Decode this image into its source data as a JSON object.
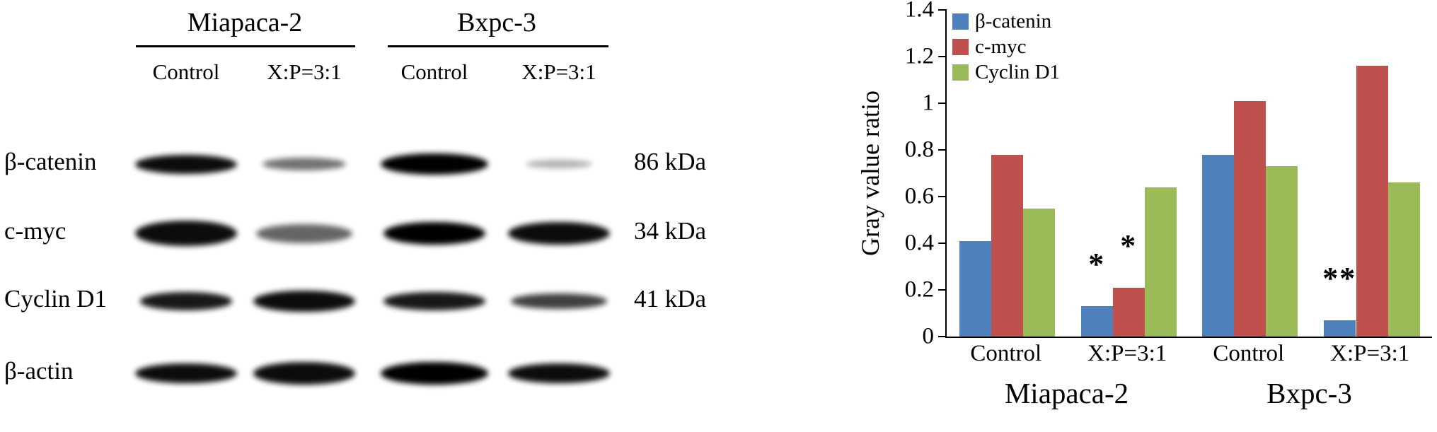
{
  "blot": {
    "groups": [
      {
        "name": "Miapaca-2",
        "lanes": [
          "Control",
          "X:P=3:1"
        ]
      },
      {
        "name": "Bxpc-3",
        "lanes": [
          "Control",
          "X:P=3:1"
        ]
      }
    ],
    "rows": [
      {
        "label": "β-catenin",
        "kda": "86 kDa",
        "bands": [
          {
            "o": 0.95,
            "w": 1.0,
            "h": 0.75
          },
          {
            "o": 0.55,
            "w": 0.82,
            "h": 0.5
          },
          {
            "o": 1.0,
            "w": 1.06,
            "h": 0.85
          },
          {
            "o": 0.3,
            "w": 0.65,
            "h": 0.35
          }
        ]
      },
      {
        "label": "c-myc",
        "kda": "34 kDa",
        "bands": [
          {
            "o": 0.95,
            "w": 1.0,
            "h": 1.0
          },
          {
            "o": 0.6,
            "w": 0.95,
            "h": 0.75
          },
          {
            "o": 1.0,
            "w": 1.0,
            "h": 0.9
          },
          {
            "o": 0.95,
            "w": 1.0,
            "h": 0.9
          }
        ]
      },
      {
        "label": "Cyclin D1",
        "kda": "41 kDa",
        "bands": [
          {
            "o": 0.9,
            "w": 0.9,
            "h": 0.7
          },
          {
            "o": 0.95,
            "w": 1.0,
            "h": 0.85
          },
          {
            "o": 0.9,
            "w": 1.0,
            "h": 0.7
          },
          {
            "o": 0.75,
            "w": 0.95,
            "h": 0.6
          }
        ]
      },
      {
        "label": "β-actin",
        "kda": "",
        "bands": [
          {
            "o": 0.95,
            "w": 1.0,
            "h": 0.8
          },
          {
            "o": 0.95,
            "w": 1.0,
            "h": 0.9
          },
          {
            "o": 1.0,
            "w": 1.06,
            "h": 0.9
          },
          {
            "o": 0.95,
            "w": 1.0,
            "h": 0.8
          }
        ]
      }
    ]
  },
  "chart_data": {
    "type": "bar",
    "title": "",
    "xlabel": "",
    "ylabel": "Gray value ratio",
    "ylim": [
      0,
      1.4
    ],
    "ytick_labels": [
      "0",
      "0.2",
      "0.4",
      "0.6",
      "0.8",
      "1",
      "1.2",
      "1.4"
    ],
    "categories": [
      "Control",
      "X:P=3:1",
      "Control",
      "X:P=3:1"
    ],
    "group_labels": [
      "Miapaca-2",
      "Bxpc-3"
    ],
    "legend_position": "top-left",
    "grid": false,
    "series": [
      {
        "name": "β-catenin",
        "color": "#4f81bd",
        "values": [
          0.41,
          0.13,
          0.78,
          0.07
        ],
        "annotations": [
          "",
          "*",
          "",
          "**"
        ]
      },
      {
        "name": "c-myc",
        "color": "#c0504d",
        "values": [
          0.78,
          0.21,
          1.01,
          1.16
        ],
        "annotations": [
          "",
          "*",
          "",
          ""
        ]
      },
      {
        "name": "Cyclin D1",
        "color": "#9bbb59",
        "values": [
          0.55,
          0.64,
          0.73,
          0.66
        ],
        "annotations": [
          "",
          "",
          "",
          ""
        ]
      }
    ]
  }
}
